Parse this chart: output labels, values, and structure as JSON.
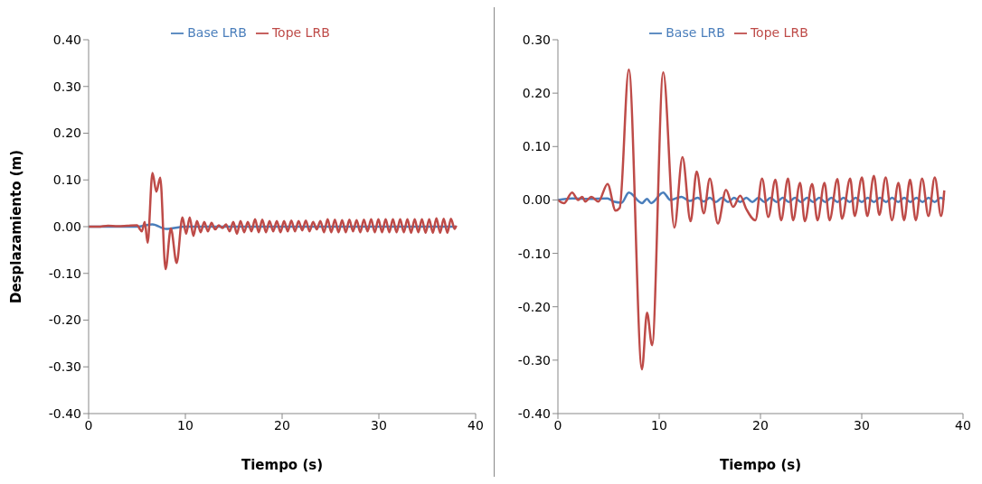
{
  "chart_data": [
    {
      "type": "line",
      "ylabel": "Desplazamiento (m)",
      "xlabel": "Tiempo (s)",
      "xlim": [
        0,
        40
      ],
      "xticks": [
        0,
        10,
        20,
        30,
        40
      ],
      "ylim": [
        -0.4,
        0.4
      ],
      "yticks": [
        {
          "value": -0.4,
          "label": "-0.40"
        },
        {
          "value": -0.3,
          "label": "-0.30"
        },
        {
          "value": -0.2,
          "label": "-0.20"
        },
        {
          "value": -0.1,
          "label": "-0.10"
        },
        {
          "value": 0,
          "label": "0.00"
        },
        {
          "value": 0.1,
          "label": "0.10"
        },
        {
          "value": 0.2,
          "label": "0.20"
        },
        {
          "value": 0.3,
          "label": "0.30"
        },
        {
          "value": 0.4,
          "label": "0.40"
        }
      ],
      "legend": "top",
      "marker": "none",
      "line_style": "solid",
      "series": [
        {
          "name": "Base LRB",
          "color": "#4a7ebb",
          "x": [
            0,
            5,
            6.6,
            8,
            10,
            20,
            38
          ],
          "values": [
            0,
            0,
            0.005,
            -0.005,
            0,
            0,
            0
          ]
        },
        {
          "name": "Tope LRB",
          "color": "#be4b48",
          "x": [
            0,
            1,
            2,
            3,
            4,
            5,
            5.5,
            5.8,
            6.1,
            6.6,
            7.0,
            7.4,
            7.95,
            8.5,
            9.1,
            9.7,
            10.08,
            10.45,
            10.83,
            11.2,
            11.58,
            11.95,
            12.33,
            12.7,
            13.08,
            13.45,
            13.83,
            14.2,
            14.58,
            14.95,
            15.33,
            15.7,
            16.08,
            16.45,
            16.83,
            17.2,
            17.58,
            17.95,
            18.33,
            18.7,
            19.08,
            19.45,
            19.83,
            20.2,
            20.58,
            20.95,
            21.33,
            21.7,
            22.08,
            22.45,
            22.83,
            23.2,
            23.58,
            23.95,
            24.33,
            24.7,
            25.08,
            25.45,
            25.83,
            26.2,
            26.58,
            26.95,
            27.33,
            27.7,
            28.08,
            28.45,
            28.83,
            29.2,
            29.58,
            29.95,
            30.33,
            30.7,
            31.08,
            31.45,
            31.83,
            32.2,
            32.58,
            32.95,
            33.33,
            33.7,
            34.08,
            34.45,
            34.83,
            35.2,
            35.58,
            35.95,
            36.33,
            36.7,
            37.08,
            37.45,
            37.83,
            38.0
          ],
          "values": [
            0,
            0,
            0.002,
            0.001,
            0.002,
            0.003,
            -0.01,
            0.01,
            -0.035,
            0.115,
            0.075,
            0.105,
            -0.091,
            -0.004,
            -0.078,
            0.02,
            -0.015,
            0.02,
            -0.02,
            0.012,
            -0.012,
            0.01,
            -0.01,
            0.008,
            -0.006,
            0.003,
            -0.003,
            0.005,
            -0.01,
            0.01,
            -0.015,
            0.012,
            -0.012,
            0.01,
            -0.01,
            0.016,
            -0.012,
            0.015,
            -0.012,
            0.012,
            -0.01,
            0.012,
            -0.012,
            0.012,
            -0.01,
            0.013,
            -0.01,
            0.012,
            -0.008,
            0.013,
            -0.01,
            0.01,
            -0.006,
            0.012,
            -0.012,
            0.016,
            -0.012,
            0.015,
            -0.012,
            0.014,
            -0.012,
            0.015,
            -0.01,
            0.014,
            -0.012,
            0.015,
            -0.01,
            0.016,
            -0.012,
            0.016,
            -0.012,
            0.016,
            -0.012,
            0.016,
            -0.012,
            0.016,
            -0.012,
            0.016,
            -0.013,
            0.016,
            -0.012,
            0.016,
            -0.013,
            0.016,
            -0.013,
            0.018,
            -0.013,
            0.017,
            -0.013,
            0.017,
            -0.005,
            0.002
          ]
        }
      ]
    },
    {
      "type": "line",
      "xlabel": "Tiempo (s)",
      "xlim": [
        0,
        40
      ],
      "xticks": [
        0,
        10,
        20,
        30,
        40
      ],
      "ylim": [
        -0.4,
        0.3
      ],
      "yticks": [
        {
          "value": -0.4,
          "label": "-0.40"
        },
        {
          "value": -0.3,
          "label": "-0.30"
        },
        {
          "value": -0.2,
          "label": "-0.20"
        },
        {
          "value": -0.1,
          "label": "-0.10"
        },
        {
          "value": 0,
          "label": "0.00"
        },
        {
          "value": 0.1,
          "label": "0.10"
        },
        {
          "value": 0.2,
          "label": "0.20"
        },
        {
          "value": 0.3,
          "label": "0.30"
        }
      ],
      "legend": "top",
      "marker": "none",
      "line_style": "solid",
      "series": [
        {
          "name": "Base LRB",
          "color": "#4a7ebb",
          "x": [
            0,
            1.4,
            3,
            4.9,
            5.5,
            6.3,
            7.0,
            8.3,
            8.8,
            9.2,
            10.4,
            11.1,
            12.2,
            13.0,
            13.8,
            14.4,
            15.0,
            15.6,
            16.2,
            16.8,
            17.4,
            18.0,
            18.6,
            19.2,
            19.8,
            20.4,
            21.0,
            21.6,
            22.2,
            22.8,
            23.4,
            24.0,
            24.6,
            25.2,
            25.8,
            26.4,
            27.0,
            27.6,
            28.2,
            28.8,
            29.4,
            30.0,
            30.6,
            31.2,
            31.8,
            32.4,
            33.0,
            33.6,
            34.2,
            34.8,
            35.4,
            36.0,
            36.6,
            37.2,
            37.8,
            38.15
          ],
          "values": [
            0,
            0.003,
            0.002,
            0.003,
            -0.003,
            -0.005,
            0.014,
            -0.006,
            0.002,
            -0.006,
            0.014,
            0,
            0.006,
            -0.002,
            0.004,
            -0.003,
            0.004,
            -0.004,
            0.004,
            -0.004,
            0.004,
            -0.004,
            0.004,
            -0.004,
            0.004,
            -0.004,
            0.004,
            -0.004,
            0.004,
            -0.004,
            0.004,
            -0.004,
            0.004,
            -0.004,
            0.004,
            -0.004,
            0.004,
            -0.004,
            0.004,
            -0.004,
            0.004,
            -0.004,
            0.004,
            -0.004,
            0.004,
            -0.004,
            0.004,
            -0.004,
            0.004,
            -0.004,
            0.004,
            -0.004,
            0.004,
            -0.004,
            0.004,
            0
          ]
        },
        {
          "name": "Tope LRB",
          "color": "#be4b48",
          "x": [
            0,
            0.6,
            1.4,
            2.0,
            2.4,
            2.7,
            3.3,
            4.0,
            4.9,
            5.7,
            6.1,
            7.0,
            8.3,
            8.8,
            9.3,
            10.4,
            11.5,
            12.3,
            13.1,
            13.7,
            14.4,
            15.0,
            15.8,
            16.6,
            17.3,
            18.0,
            18.6,
            19.5,
            20.16,
            20.78,
            21.47,
            22.04,
            22.72,
            23.22,
            23.91,
            24.38,
            25.1,
            25.63,
            26.32,
            26.82,
            27.6,
            28.05,
            28.86,
            29.3,
            30.02,
            30.55,
            31.2,
            31.74,
            32.36,
            32.99,
            33.62,
            34.18,
            34.77,
            35.34,
            35.96,
            36.59,
            37.21,
            37.84,
            38.15
          ],
          "values": [
            0,
            -0.006,
            0.014,
            0,
            0.006,
            -0.003,
            0.006,
            -0.003,
            0.03,
            -0.02,
            -0.015,
            0.244,
            -0.317,
            -0.211,
            -0.272,
            0.239,
            -0.052,
            0.08,
            -0.04,
            0.053,
            -0.025,
            0.04,
            -0.044,
            0.019,
            -0.013,
            0.008,
            -0.017,
            -0.038,
            0.04,
            -0.032,
            0.038,
            -0.038,
            0.04,
            -0.038,
            0.032,
            -0.04,
            0.03,
            -0.038,
            0.032,
            -0.038,
            0.039,
            -0.035,
            0.04,
            -0.03,
            0.042,
            -0.03,
            0.045,
            -0.028,
            0.042,
            -0.038,
            0.032,
            -0.038,
            0.038,
            -0.038,
            0.04,
            -0.03,
            0.042,
            -0.03,
            0.018
          ]
        }
      ]
    }
  ]
}
